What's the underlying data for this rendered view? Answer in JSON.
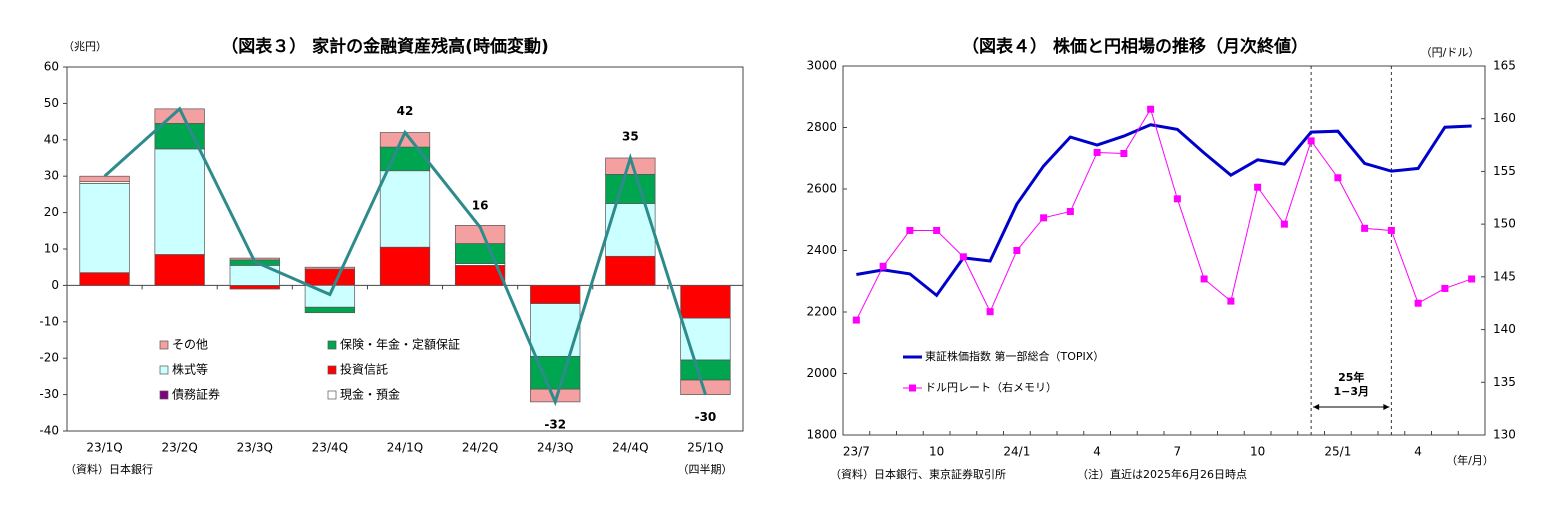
{
  "chart_data": [
    {
      "type": "bar",
      "stacked": true,
      "title": "（図表３） 家計の金融資産残高(時価変動)",
      "y_label": "（兆円）",
      "x_label": "（四半期）",
      "source": "（資料）日本銀行",
      "categories": [
        "23/1Q",
        "23/2Q",
        "23/3Q",
        "23/4Q",
        "24/1Q",
        "24/2Q",
        "24/3Q",
        "24/4Q",
        "25/1Q"
      ],
      "series": [
        {
          "name": "その他",
          "color": "#f4a0a0",
          "values": [
            1.5,
            4,
            0.5,
            0.5,
            4,
            5,
            -3.5,
            4.5,
            -4
          ]
        },
        {
          "name": "保険・年金・定額保証",
          "color": "#00a550",
          "values": [
            0,
            7,
            1.5,
            -1.5,
            6.5,
            5.5,
            -9,
            8,
            -5.5
          ]
        },
        {
          "name": "株式等",
          "color": "#ccffff",
          "values": [
            24.5,
            29,
            5.5,
            -6,
            21,
            0,
            -14.5,
            14.5,
            -11.5
          ]
        },
        {
          "name": "投資信託",
          "color": "#ff0000",
          "values": [
            3.5,
            8.5,
            -1,
            4.5,
            10.5,
            5.5,
            -5,
            8,
            -9
          ]
        },
        {
          "name": "債務証券",
          "color": "#800080",
          "values": [
            0,
            0,
            0,
            0,
            0,
            0,
            0,
            0,
            0
          ]
        },
        {
          "name": "現金・預金",
          "color": "#ffffff",
          "values": [
            0.5,
            0,
            0,
            0,
            0,
            0.5,
            0,
            0,
            0
          ]
        }
      ],
      "line": {
        "color": "#2e8b8b",
        "values": [
          30,
          48.5,
          6.5,
          -2.5,
          42,
          16,
          -32,
          35,
          -30
        ],
        "value_labels": [
          null,
          null,
          null,
          null,
          "42",
          "16",
          "-32",
          "35",
          "-30"
        ]
      },
      "ylim": [
        -40,
        60
      ],
      "yticks": [
        -40,
        -30,
        -20,
        -10,
        0,
        10,
        20,
        30,
        40,
        50,
        60
      ]
    },
    {
      "type": "line",
      "title": "（図表４） 株価と円相場の推移（月次終値）",
      "y2_label": "（円/ドル）",
      "x_label": "（年/月）",
      "source": "（資料）日本銀行、東京証券取引所",
      "note": "（注）直近は2025年6月26日時点",
      "categories": [
        "23/7",
        null,
        null,
        "10",
        null,
        null,
        "24/1",
        null,
        null,
        "4",
        null,
        null,
        "7",
        null,
        null,
        "10",
        null,
        null,
        "25/1",
        null,
        null,
        "4",
        null,
        null
      ],
      "series": [
        {
          "name": "東証株価指数 第一部総合（TOPIX）",
          "color": "#0000cc",
          "values": [
            2322,
            2337,
            2324,
            2254,
            2376,
            2366,
            2551,
            2675,
            2769,
            2743,
            2772,
            2809,
            2794,
            2717,
            2645,
            2695,
            2681,
            2785,
            2788,
            2683,
            2658,
            2667,
            2801,
            2805
          ]
        },
        {
          "name": "ドル円レート（右メモリ）",
          "color": "#ff00ff",
          "axis": "y2",
          "marker": "square",
          "values": [
            140.9,
            146.0,
            149.4,
            149.4,
            146.9,
            141.7,
            147.5,
            150.6,
            151.2,
            156.8,
            156.7,
            160.9,
            152.4,
            144.8,
            142.7,
            153.5,
            150.0,
            157.9,
            154.4,
            149.6,
            149.4,
            142.5,
            143.9,
            144.8
          ]
        }
      ],
      "ylim": [
        1800,
        3000
      ],
      "yticks": [
        1800,
        2000,
        2200,
        2400,
        2600,
        2800,
        3000
      ],
      "y2lim": [
        130,
        165
      ],
      "y2ticks": [
        130,
        135,
        140,
        145,
        150,
        155,
        160,
        165
      ],
      "annotation": {
        "text": [
          "25年",
          "1−3月"
        ],
        "x_range": [
          17,
          20
        ]
      }
    }
  ]
}
